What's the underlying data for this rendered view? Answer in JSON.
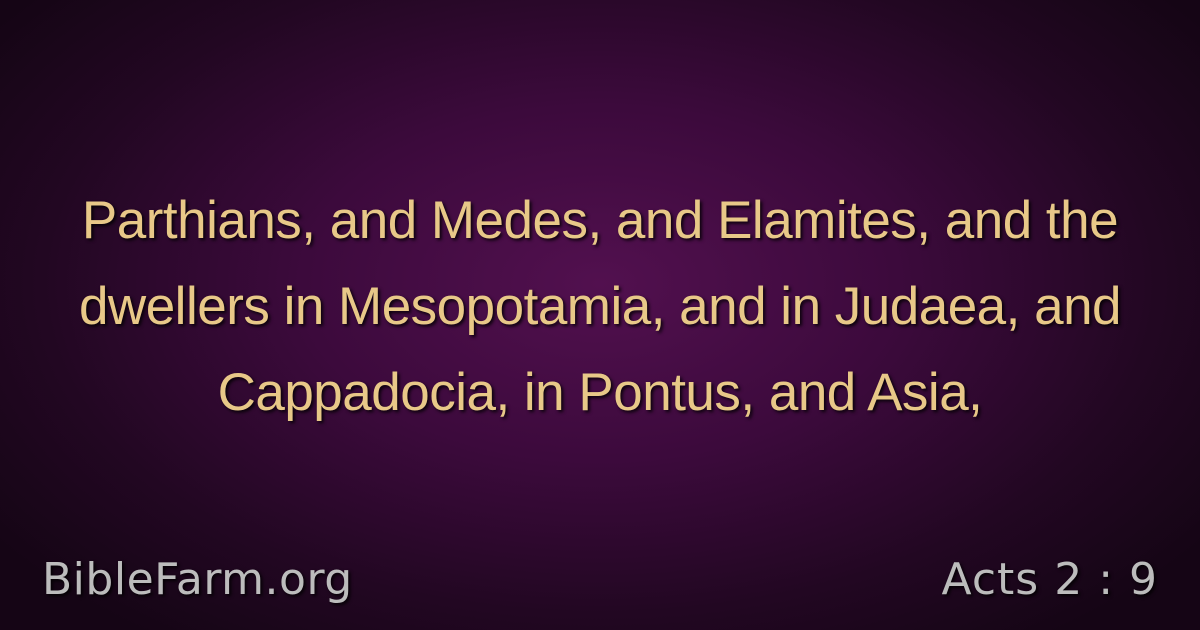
{
  "verse": {
    "text": "Parthians, and Medes, and Elamites, and the dwellers in Mesopotamia, and in Judaea, and Cappadocia, in Pontus, and Asia,"
  },
  "footer": {
    "site": "BibleFarm.org",
    "reference": "Acts 2 : 9"
  },
  "colors": {
    "background_center": "#52104f",
    "background_edge": "#150515",
    "verse_text": "#e8c888",
    "footer_text": "#bcbcbc"
  }
}
